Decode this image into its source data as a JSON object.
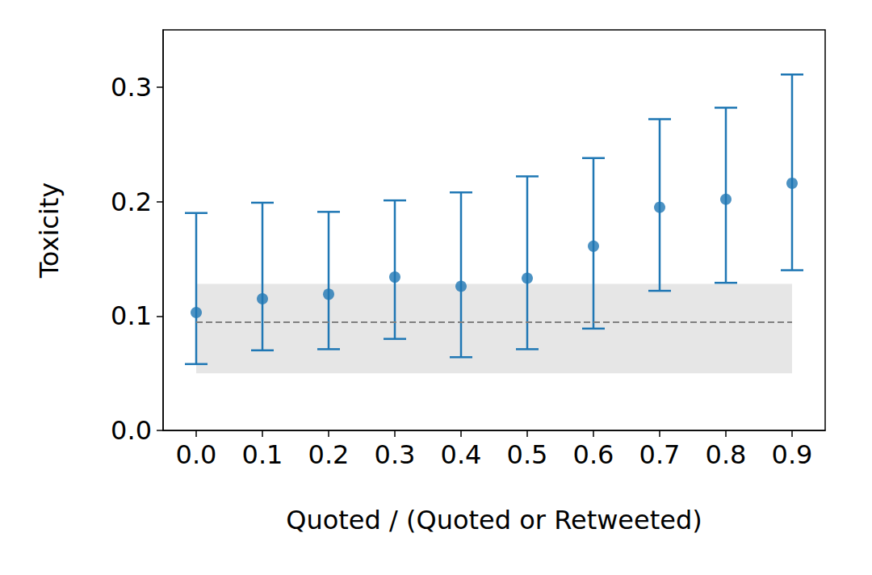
{
  "chart_data": {
    "type": "scatter",
    "x_label": "Quoted / (Quoted or Retweeted)",
    "y_label": "Toxicity",
    "categories": [
      "0.0",
      "0.1",
      "0.2",
      "0.3",
      "0.4",
      "0.5",
      "0.6",
      "0.7",
      "0.8",
      "0.9"
    ],
    "values": [
      0.103,
      0.115,
      0.119,
      0.134,
      0.126,
      0.133,
      0.161,
      0.195,
      0.202,
      0.216
    ],
    "error_lower": [
      0.058,
      0.07,
      0.071,
      0.08,
      0.064,
      0.071,
      0.089,
      0.122,
      0.129,
      0.14
    ],
    "error_upper": [
      0.19,
      0.199,
      0.191,
      0.201,
      0.208,
      0.222,
      0.238,
      0.272,
      0.282,
      0.311
    ],
    "reference": {
      "value": 0.095,
      "lower": 0.05,
      "upper": 0.128,
      "color": "#808080"
    },
    "color": "#1f77b4",
    "marker": "circle",
    "ylim": [
      0,
      0.35
    ],
    "yticks": [
      {
        "value": 0,
        "label": "0.0"
      },
      0.1,
      0.2,
      0.3
    ],
    "grid": false
  }
}
